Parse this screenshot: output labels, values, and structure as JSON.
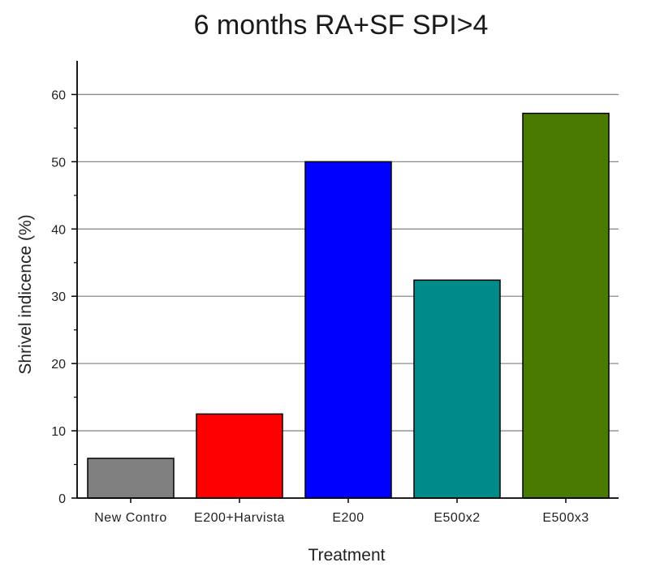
{
  "chart_data": {
    "type": "bar",
    "title": "6 months RA+SF SPI>4",
    "xlabel": "Treatment",
    "ylabel": "Shrivel indicence (%)",
    "categories": [
      "New Contro",
      "E200+Harvista",
      "E200",
      "E500x2",
      "E500x3"
    ],
    "values": [
      5.9,
      12.5,
      50.0,
      32.4,
      57.2
    ],
    "colors": [
      "#808080",
      "#ff0000",
      "#0000ff",
      "#008b8b",
      "#4a7a00"
    ],
    "ylim": [
      0,
      65
    ],
    "yticks": [
      0,
      10,
      20,
      30,
      40,
      50,
      60
    ],
    "ytick_labels": [
      "0",
      "10",
      "20",
      "30",
      "40",
      "50",
      "60"
    ],
    "grid": true,
    "legend": "none"
  }
}
